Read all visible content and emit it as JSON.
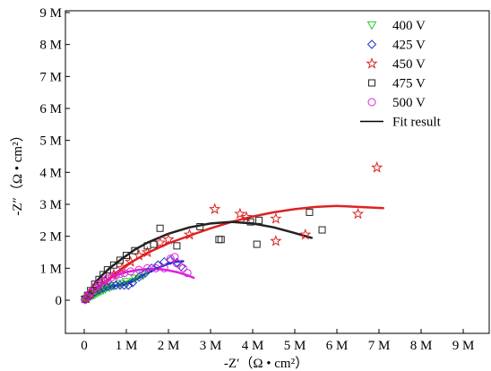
{
  "chart_data": {
    "type": "scatter",
    "title": "",
    "xlabel": "-Z′（Ω • cm²）",
    "ylabel": "-Z″（Ω • cm²）",
    "xlim": [
      -0.5,
      9
    ],
    "ylim": [
      -0.3,
      9
    ],
    "x_ticks": [
      0,
      1,
      2,
      3,
      4,
      5,
      6,
      7,
      8,
      9
    ],
    "y_ticks": [
      0,
      1,
      2,
      3,
      4,
      5,
      6,
      7,
      8,
      9
    ],
    "x_tick_labels": [
      "0",
      "1 M",
      "2 M",
      "3 M",
      "4 M",
      "5 M",
      "6 M",
      "7 M",
      "8 M",
      "9 M"
    ],
    "y_tick_labels": [
      "0",
      "1 M",
      "2 M",
      "3 M",
      "4 M",
      "5 M",
      "6 M",
      "7 M",
      "8 M",
      "9 M"
    ],
    "unit_note": "values in MΩ·cm²",
    "legend_position": "top-right",
    "legend_labels": [
      "400 V",
      "425 V",
      "450 V",
      "475 V",
      "500 V",
      "Fit result"
    ],
    "series": [
      {
        "name": "400 V",
        "marker": "triangle-down",
        "color": "#22cc22",
        "points": [
          [
            0.02,
            0.02
          ],
          [
            0.05,
            0.04
          ],
          [
            0.08,
            0.06
          ],
          [
            0.11,
            0.09
          ],
          [
            0.15,
            0.12
          ],
          [
            0.2,
            0.15
          ],
          [
            0.25,
            0.18
          ],
          [
            0.3,
            0.22
          ],
          [
            0.35,
            0.26
          ],
          [
            0.4,
            0.29
          ],
          [
            0.45,
            0.32
          ],
          [
            0.5,
            0.35
          ],
          [
            0.6,
            0.4
          ],
          [
            0.7,
            0.45
          ],
          [
            0.85,
            0.52
          ],
          [
            1.0,
            0.58
          ],
          [
            1.2,
            0.68
          ],
          [
            1.4,
            0.78
          ]
        ],
        "fit": [
          [
            0.02,
            0.0
          ],
          [
            0.2,
            0.12
          ],
          [
            0.5,
            0.32
          ],
          [
            0.8,
            0.48
          ],
          [
            1.1,
            0.63
          ],
          [
            1.4,
            0.8
          ]
        ]
      },
      {
        "name": "425 V",
        "marker": "diamond",
        "color": "#2233cc",
        "points": [
          [
            0.02,
            0.02
          ],
          [
            0.08,
            0.08
          ],
          [
            0.15,
            0.15
          ],
          [
            0.25,
            0.25
          ],
          [
            0.35,
            0.32
          ],
          [
            0.45,
            0.38
          ],
          [
            0.55,
            0.42
          ],
          [
            0.65,
            0.45
          ],
          [
            0.75,
            0.47
          ],
          [
            0.85,
            0.47
          ],
          [
            0.95,
            0.47
          ],
          [
            1.05,
            0.47
          ],
          [
            1.15,
            0.55
          ],
          [
            1.3,
            0.72
          ],
          [
            1.45,
            0.85
          ],
          [
            1.6,
            1.0
          ],
          [
            1.75,
            1.1
          ],
          [
            1.9,
            1.2
          ],
          [
            2.05,
            1.25
          ],
          [
            2.2,
            1.18
          ],
          [
            2.3,
            1.05
          ]
        ],
        "fit": [
          [
            0.0,
            0.0
          ],
          [
            0.2,
            0.2
          ],
          [
            0.4,
            0.33
          ],
          [
            0.6,
            0.43
          ],
          [
            0.8,
            0.47
          ],
          [
            1.0,
            0.5
          ],
          [
            1.2,
            0.62
          ],
          [
            1.45,
            0.82
          ],
          [
            1.7,
            0.98
          ],
          [
            1.95,
            1.12
          ],
          [
            2.15,
            1.2
          ],
          [
            2.35,
            1.22
          ]
        ]
      },
      {
        "name": "450 V",
        "marker": "star",
        "color": "#dd2222",
        "points": [
          [
            0.05,
            0.06
          ],
          [
            0.15,
            0.2
          ],
          [
            0.3,
            0.4
          ],
          [
            0.5,
            0.6
          ],
          [
            0.7,
            0.8
          ],
          [
            0.9,
            1.0
          ],
          [
            1.1,
            1.2
          ],
          [
            1.3,
            1.4
          ],
          [
            1.5,
            1.5
          ],
          [
            1.8,
            1.8
          ],
          [
            2.0,
            1.9
          ],
          [
            2.5,
            2.05
          ],
          [
            3.1,
            2.85
          ],
          [
            3.7,
            2.7
          ],
          [
            3.85,
            2.6
          ],
          [
            4.55,
            2.55
          ],
          [
            4.55,
            1.85
          ],
          [
            5.25,
            2.05
          ],
          [
            6.5,
            2.7
          ],
          [
            6.95,
            4.15
          ]
        ],
        "fit": [
          [
            0.0,
            0.0
          ],
          [
            0.3,
            0.38
          ],
          [
            0.7,
            0.8
          ],
          [
            1.0,
            1.1
          ],
          [
            1.5,
            1.48
          ],
          [
            2.0,
            1.78
          ],
          [
            2.5,
            2.02
          ],
          [
            3.0,
            2.25
          ],
          [
            3.5,
            2.45
          ],
          [
            4.0,
            2.62
          ],
          [
            4.5,
            2.75
          ],
          [
            5.0,
            2.85
          ],
          [
            5.5,
            2.92
          ],
          [
            6.0,
            2.95
          ],
          [
            6.5,
            2.92
          ],
          [
            7.1,
            2.88
          ]
        ]
      },
      {
        "name": "475 V",
        "marker": "square",
        "color": "#222222",
        "points": [
          [
            0.02,
            0.03
          ],
          [
            0.08,
            0.15
          ],
          [
            0.15,
            0.3
          ],
          [
            0.25,
            0.5
          ],
          [
            0.35,
            0.65
          ],
          [
            0.45,
            0.8
          ],
          [
            0.55,
            0.95
          ],
          [
            0.7,
            1.1
          ],
          [
            0.85,
            1.25
          ],
          [
            1.0,
            1.4
          ],
          [
            1.2,
            1.55
          ],
          [
            1.5,
            1.7
          ],
          [
            1.65,
            1.75
          ],
          [
            1.8,
            2.25
          ],
          [
            2.2,
            1.7
          ],
          [
            2.75,
            2.3
          ],
          [
            3.2,
            1.9
          ],
          [
            3.25,
            1.9
          ],
          [
            3.95,
            2.45
          ],
          [
            4.1,
            1.75
          ],
          [
            4.15,
            2.5
          ],
          [
            5.35,
            2.75
          ],
          [
            5.65,
            2.2
          ]
        ],
        "fit": [
          [
            0.0,
            0.0
          ],
          [
            0.2,
            0.45
          ],
          [
            0.4,
            0.75
          ],
          [
            0.6,
            1.0
          ],
          [
            0.9,
            1.3
          ],
          [
            1.2,
            1.58
          ],
          [
            1.5,
            1.8
          ],
          [
            2.0,
            2.08
          ],
          [
            2.5,
            2.28
          ],
          [
            3.0,
            2.4
          ],
          [
            3.5,
            2.45
          ],
          [
            4.0,
            2.4
          ],
          [
            4.5,
            2.28
          ],
          [
            5.0,
            2.1
          ],
          [
            5.4,
            1.95
          ]
        ]
      },
      {
        "name": "500 V",
        "marker": "circle",
        "color": "#dd22dd",
        "points": [
          [
            0.02,
            0.02
          ],
          [
            0.08,
            0.12
          ],
          [
            0.15,
            0.25
          ],
          [
            0.25,
            0.4
          ],
          [
            0.35,
            0.5
          ],
          [
            0.45,
            0.6
          ],
          [
            0.55,
            0.68
          ],
          [
            0.65,
            0.72
          ],
          [
            0.75,
            0.78
          ],
          [
            0.85,
            0.82
          ],
          [
            0.95,
            0.85
          ],
          [
            1.1,
            0.9
          ],
          [
            1.3,
            0.95
          ],
          [
            1.5,
            1.0
          ],
          [
            1.7,
            1.0
          ],
          [
            1.9,
            1.0
          ],
          [
            2.05,
            1.3
          ],
          [
            2.15,
            1.35
          ],
          [
            2.2,
            1.15
          ],
          [
            2.35,
            1.0
          ],
          [
            2.45,
            0.85
          ]
        ],
        "fit": [
          [
            0.0,
            0.0
          ],
          [
            0.2,
            0.3
          ],
          [
            0.4,
            0.52
          ],
          [
            0.6,
            0.68
          ],
          [
            0.8,
            0.8
          ],
          [
            1.0,
            0.88
          ],
          [
            1.3,
            0.95
          ],
          [
            1.6,
            0.98
          ],
          [
            1.9,
            0.96
          ],
          [
            2.2,
            0.88
          ],
          [
            2.45,
            0.78
          ],
          [
            2.6,
            0.7
          ]
        ]
      }
    ]
  }
}
